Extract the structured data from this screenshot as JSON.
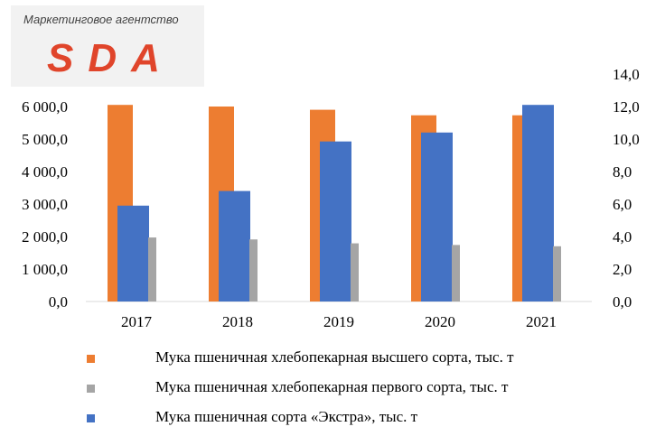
{
  "logo": {
    "tagline": "Маркетинговое агентство",
    "name": "SDA"
  },
  "chart_data": {
    "type": "bar",
    "categories": [
      "2017",
      "2018",
      "2019",
      "2020",
      "2021"
    ],
    "series": [
      {
        "name": "Мука пшеничная хлебопекарная высшего сорта, тыс. т",
        "axis": "left",
        "color": "#ed7d31",
        "values": [
          6050,
          6000,
          5900,
          5730,
          5730
        ]
      },
      {
        "name": "Мука пшеничная сорта «Экстра», тыс. т",
        "axis": "right",
        "color": "#4472c4",
        "values": [
          5.9,
          6.8,
          9.85,
          10.4,
          12.1
        ]
      },
      {
        "name": "Мука пшеничная хлебопекарная первого сорта, тыс. т",
        "axis": "left",
        "color": "#a5a5a5",
        "values": [
          1970,
          1910,
          1790,
          1740,
          1700
        ]
      }
    ],
    "y_left": {
      "ylim": [
        0,
        6000
      ],
      "ticks": [
        "0,0",
        "1 000,0",
        "2 000,0",
        "3 000,0",
        "4 000,0",
        "5 000,0",
        "6 000,0"
      ]
    },
    "y_right": {
      "ylim": [
        0,
        14
      ],
      "ticks": [
        "0,0",
        "2,0",
        "4,0",
        "6,0",
        "8,0",
        "10,0",
        "12,0",
        "14,0"
      ]
    },
    "grid": false,
    "legend_position": "bottom",
    "legend_order": [
      0,
      2,
      1
    ]
  }
}
